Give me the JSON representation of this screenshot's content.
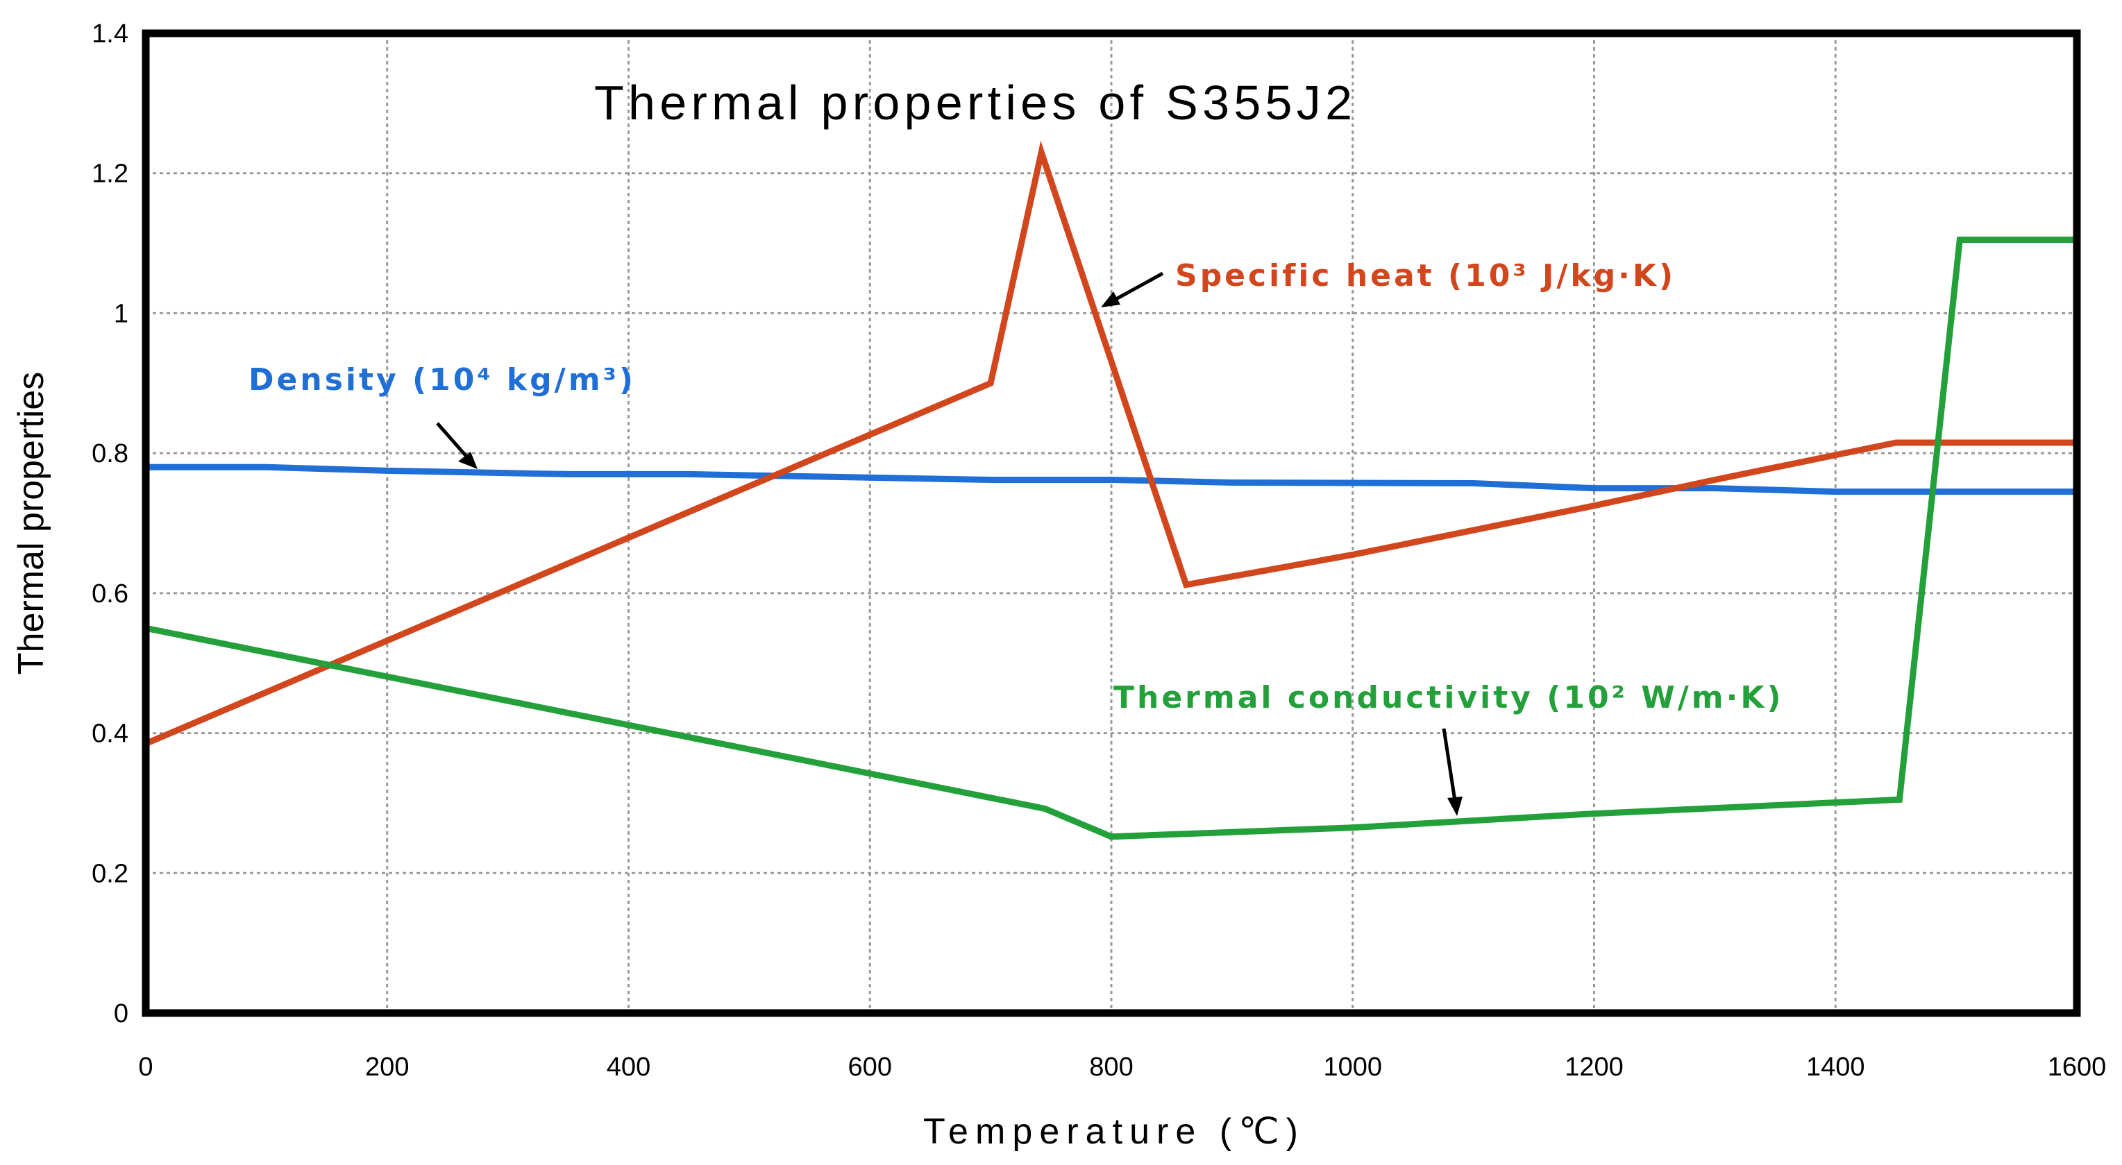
{
  "chart_data": {
    "type": "line",
    "title": "Thermal properties of S355J2",
    "xlabel": "Temperature (℃)",
    "ylabel": "Thermal properties",
    "xlim": [
      0,
      1600
    ],
    "ylim": [
      0,
      1.4
    ],
    "x_ticks": [
      0,
      200,
      400,
      600,
      800,
      1000,
      1200,
      1400,
      1600
    ],
    "y_ticks": [
      "0",
      "0.2",
      "0.4",
      "0.6",
      "0.8",
      "1",
      "1.2",
      "1.4"
    ],
    "y_tick_values": [
      0,
      0.2,
      0.4,
      0.6,
      0.8,
      1.0,
      1.2,
      1.4
    ],
    "grid": true,
    "series": [
      {
        "name": "Density (10⁴ kg/m³)",
        "color": "#1f6fd6",
        "x": [
          0,
          100,
          200,
          350,
          450,
          700,
          800,
          900,
          1100,
          1200,
          1300,
          1400,
          1600
        ],
        "y": [
          0.78,
          0.78,
          0.775,
          0.77,
          0.77,
          0.762,
          0.762,
          0.758,
          0.757,
          0.75,
          0.75,
          0.745,
          0.745
        ]
      },
      {
        "name": "Specific heat (10³ J/kg·K)",
        "color": "#d2461e",
        "x": [
          0,
          700,
          742,
          862,
          1000,
          1200,
          1300,
          1450,
          1600
        ],
        "y": [
          0.385,
          0.9,
          1.23,
          0.612,
          0.655,
          0.725,
          0.762,
          0.815,
          0.815
        ]
      },
      {
        "name": "Thermal conductivity (10² W/m·K)",
        "color": "#24a03a",
        "x": [
          0,
          745,
          800,
          1000,
          1200,
          1453,
          1503,
          1600
        ],
        "y": [
          0.55,
          0.292,
          0.252,
          0.265,
          0.285,
          0.305,
          1.105,
          1.105
        ]
      }
    ],
    "annotations": [
      {
        "text": "Density (10⁴ kg/m³)",
        "series": 0
      },
      {
        "text": "Specific heat (10³ J/kg·K)",
        "series": 1
      },
      {
        "text": "Thermal conductivity (10² W/m·K)",
        "series": 2
      }
    ]
  }
}
